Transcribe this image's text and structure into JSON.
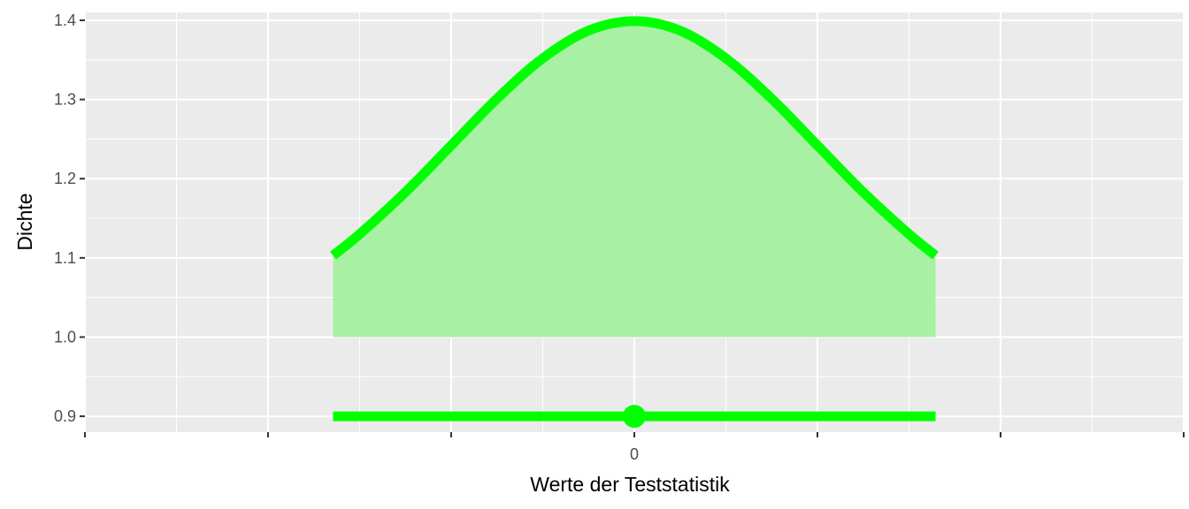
{
  "chart_data": {
    "type": "area",
    "title": "",
    "xlabel": "Werte der Teststatistik",
    "ylabel": "Dichte",
    "xlim": [
      -3,
      3
    ],
    "ylim": [
      0.88,
      1.41
    ],
    "x_ticks": [
      -3,
      -2,
      -1,
      0,
      1,
      2,
      3
    ],
    "x_tick_labels": [
      "",
      "",
      "",
      "0",
      "",
      "",
      ""
    ],
    "y_ticks": [
      0.9,
      1.0,
      1.1,
      1.2,
      1.3,
      1.4
    ],
    "y_tick_labels": [
      "0.9",
      "1.0",
      "1.1",
      "1.2",
      "1.3",
      "1.4"
    ],
    "grid": true,
    "density_curve": {
      "x": [
        -1.645,
        -1.5,
        -1.25,
        -1.0,
        -0.75,
        -0.5,
        -0.25,
        0,
        0.25,
        0.5,
        0.75,
        1.0,
        1.25,
        1.5,
        1.645
      ],
      "y": [
        1.103,
        1.13,
        1.183,
        1.242,
        1.301,
        1.352,
        1.387,
        1.399,
        1.387,
        1.352,
        1.301,
        1.242,
        1.183,
        1.13,
        1.103
      ],
      "baseline": 1.0
    },
    "interval": {
      "x_start": -1.645,
      "x_end": 1.645,
      "y": 0.9
    },
    "point": {
      "x": 0,
      "y": 0.9
    },
    "colors": {
      "line": "#00ff00",
      "fill": "#a8f0a4",
      "panel": "#ebebeb",
      "grid": "#ffffff",
      "tick": "#333333"
    }
  }
}
